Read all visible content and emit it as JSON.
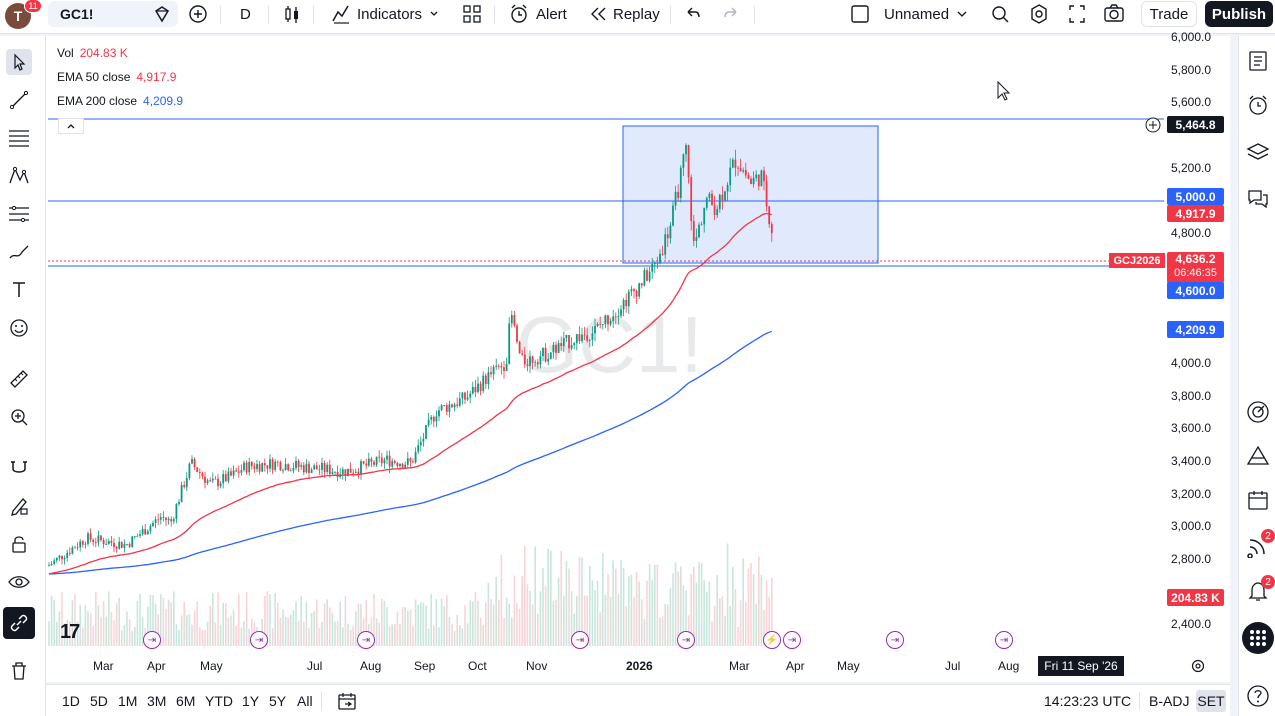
{
  "header": {
    "avatar_letter": "T",
    "avatar_badge": "11",
    "symbol": "GC1!",
    "interval": "D",
    "indicators_label": "Indicators",
    "alert_label": "Alert",
    "replay_label": "Replay",
    "layout_name": "Unnamed",
    "trade_label": "Trade",
    "publish_label": "Publish"
  },
  "legend": {
    "vol_label": "Vol",
    "vol_value": "204.83 K",
    "ema50_label": "EMA 50 close",
    "ema50_value": "4,917.9",
    "ema200_label": "EMA 200 close",
    "ema200_value": "4,209.9"
  },
  "watermark": "GC1!",
  "price_axis": {
    "ticks": [
      "6,000.0",
      "5,800.0",
      "5,600.0",
      "5,200.0",
      "4,800.0",
      "4,000.0",
      "3,800.0",
      "3,600.0",
      "3,400.0",
      "3,200.0",
      "3,000.0",
      "2,800.0",
      "2,400.0"
    ],
    "labels": {
      "h_line_top": "5,464.8",
      "h_line_mid": "5,000.0",
      "ema50": "4,917.9",
      "symbol_tag": "GCJ2026",
      "last_price": "4,636.2",
      "countdown": "06:46:35",
      "h_line_low": "4,600.0",
      "ema200": "4,209.9",
      "volume": "204.83 K"
    }
  },
  "time_axis": {
    "labels": [
      "Mar",
      "Apr",
      "May",
      "Jul",
      "Aug",
      "Sep",
      "Oct",
      "Nov",
      "2026",
      "Mar",
      "Apr",
      "May",
      "Jul",
      "Aug"
    ],
    "crosshair_date": "Fri 11 Sep '26"
  },
  "bottom": {
    "ranges": [
      "1D",
      "5D",
      "1M",
      "3M",
      "6M",
      "YTD",
      "1Y",
      "5Y",
      "All"
    ],
    "clock": "14:23:23 UTC",
    "badj": "B-ADJ",
    "set": "SET"
  },
  "right_badges": {
    "ideas": "2",
    "alerts": "2"
  },
  "colors": {
    "ema50": "#f23645",
    "ema200": "#2962ff",
    "up": "#089981",
    "down": "#f23645",
    "hline": "#2962ff",
    "rect_fill": "#dbe6fb",
    "rect_stroke": "#2962ff"
  }
}
